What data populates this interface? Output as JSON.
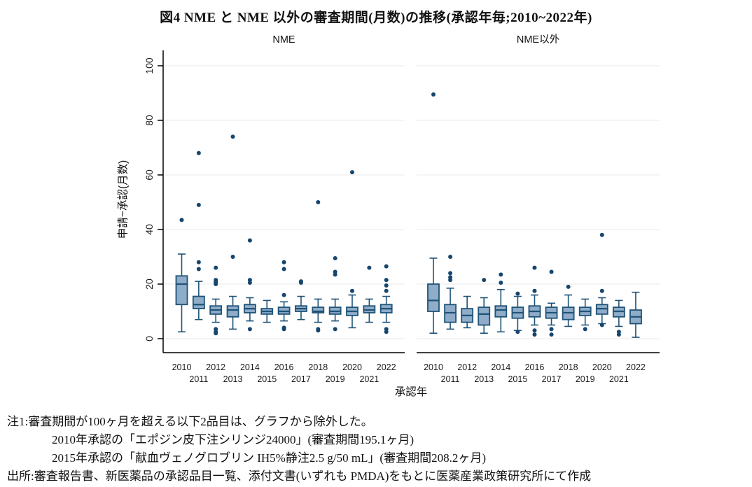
{
  "title": "図4 NME と NME 以外の審査期間(月数)の推移(承認年毎;2010~2022年)",
  "notes": {
    "note1": "注1:審査期間が100ヶ月を超える以下2品目は、グラフから除外した。",
    "note2": "2010年承認の「エポジン皮下注シリンジ24000」(審査期間195.1ヶ月)",
    "note3": "2015年承認の「献血ヴェノグロブリン IH5%静注2.5 g/50 mL」(審査期間208.2ヶ月)",
    "source": "出所:審査報告書、新医薬品の承認品目一覧、添付文書(いずれも PMDA)をもとに医薬産業政策研究所にて作成"
  },
  "chart_data": {
    "type": "boxplot",
    "xlabel": "承認年",
    "ylabel": "申請~承認(月数)",
    "ylim": [
      0,
      100
    ],
    "yticks": [
      0,
      20,
      40,
      60,
      80,
      100
    ],
    "grid": "horizontal",
    "categories": [
      "2010",
      "2011",
      "2012",
      "2013",
      "2014",
      "2015",
      "2016",
      "2017",
      "2018",
      "2019",
      "2020",
      "2021",
      "2022"
    ],
    "colors": {
      "box_fill": "#8facc8",
      "box_stroke": "#1f5378",
      "outlier": "#16466e",
      "gridline": "#e8e8ea"
    },
    "panels": [
      {
        "title": "NME",
        "boxes": [
          {
            "year": "2010",
            "low": 2.5,
            "q1": 12.5,
            "median": 20,
            "q3": 23,
            "high": 31,
            "outliers": [
              43.5
            ]
          },
          {
            "year": "2011",
            "low": 7,
            "q1": 11,
            "median": 12.5,
            "q3": 15.5,
            "high": 21,
            "outliers": [
              25.5,
              28,
              49,
              68
            ]
          },
          {
            "year": "2012",
            "low": 6,
            "q1": 9,
            "median": 10.5,
            "q3": 12,
            "high": 14.5,
            "outliers": [
              2,
              2.5,
              3.5,
              20,
              20.5,
              21,
              21.5,
              26
            ]
          },
          {
            "year": "2013",
            "low": 3.5,
            "q1": 8,
            "median": 10.5,
            "q3": 12,
            "high": 15.5,
            "outliers": [
              30,
              74
            ]
          },
          {
            "year": "2014",
            "low": 6.5,
            "q1": 9.5,
            "median": 11,
            "q3": 12.5,
            "high": 15,
            "outliers": [
              3.5,
              20.5,
              21.5,
              36
            ]
          },
          {
            "year": "2015",
            "low": 6,
            "q1": 9,
            "median": 10,
            "q3": 11,
            "high": 14,
            "outliers": []
          },
          {
            "year": "2016",
            "low": 6.5,
            "q1": 9,
            "median": 10,
            "q3": 11.5,
            "high": 13.5,
            "outliers": [
              3.5,
              4,
              16,
              25.5,
              28
            ]
          },
          {
            "year": "2017",
            "low": 7,
            "q1": 10,
            "median": 11,
            "q3": 12,
            "high": 15.5,
            "outliers": [
              20.5,
              21
            ]
          },
          {
            "year": "2018",
            "low": 6,
            "q1": 9.5,
            "median": 10,
            "q3": 11.5,
            "high": 14.5,
            "outliers": [
              3,
              3.5,
              50
            ]
          },
          {
            "year": "2019",
            "low": 6.5,
            "q1": 9,
            "median": 10,
            "q3": 11.5,
            "high": 14.5,
            "outliers": [
              3.5,
              23.5,
              24.5,
              29.5
            ]
          },
          {
            "year": "2020",
            "low": 4,
            "q1": 8.5,
            "median": 10,
            "q3": 11.5,
            "high": 16,
            "outliers": [
              17.5,
              61
            ]
          },
          {
            "year": "2021",
            "low": 6,
            "q1": 9.5,
            "median": 10.5,
            "q3": 12,
            "high": 14.5,
            "outliers": [
              26
            ]
          },
          {
            "year": "2022",
            "low": 6,
            "q1": 9.5,
            "median": 11,
            "q3": 12.5,
            "high": 15.5,
            "outliers": [
              2.5,
              3.5,
              17.5,
              19.5,
              21.5,
              26.5
            ]
          }
        ]
      },
      {
        "title": "NME以外",
        "boxes": [
          {
            "year": "2010",
            "low": 2,
            "q1": 10,
            "median": 14,
            "q3": 20,
            "high": 29.5,
            "outliers": [
              89.5
            ]
          },
          {
            "year": "2011",
            "low": 3.5,
            "q1": 6,
            "median": 9.5,
            "q3": 12.5,
            "high": 18.5,
            "outliers": [
              21.5,
              22.5,
              24,
              30
            ]
          },
          {
            "year": "2012",
            "low": 4,
            "q1": 6,
            "median": 8.5,
            "q3": 11,
            "high": 15.5,
            "outliers": []
          },
          {
            "year": "2013",
            "low": 2,
            "q1": 5,
            "median": 9,
            "q3": 11.5,
            "high": 15,
            "outliers": [
              21.5
            ]
          },
          {
            "year": "2014",
            "low": 2.5,
            "q1": 8,
            "median": 10.5,
            "q3": 12,
            "high": 18,
            "outliers": [
              20.5,
              23.5
            ]
          },
          {
            "year": "2015",
            "low": 3,
            "q1": 7.5,
            "median": 9.5,
            "q3": 11.5,
            "high": 15.5,
            "outliers": [
              2.5,
              16.5
            ]
          },
          {
            "year": "2016",
            "low": 5,
            "q1": 8,
            "median": 10,
            "q3": 12,
            "high": 16,
            "outliers": [
              1.5,
              3,
              17.5,
              26
            ]
          },
          {
            "year": "2017",
            "low": 5,
            "q1": 7.5,
            "median": 9.5,
            "q3": 11.5,
            "high": 13,
            "outliers": [
              1.5,
              3.5,
              24.5
            ]
          },
          {
            "year": "2018",
            "low": 4.5,
            "q1": 7,
            "median": 9.5,
            "q3": 11.5,
            "high": 16,
            "outliers": [
              19
            ]
          },
          {
            "year": "2019",
            "low": 5,
            "q1": 8.5,
            "median": 10,
            "q3": 11.5,
            "high": 14.5,
            "outliers": [
              3.5
            ]
          },
          {
            "year": "2020",
            "low": 5.5,
            "q1": 9,
            "median": 11,
            "q3": 12.5,
            "high": 15,
            "outliers": [
              5,
              17.5,
              38
            ]
          },
          {
            "year": "2021",
            "low": 4.5,
            "q1": 8,
            "median": 10,
            "q3": 11.5,
            "high": 14,
            "outliers": [
              1.5,
              2.5
            ]
          },
          {
            "year": "2022",
            "low": 0.5,
            "q1": 5.5,
            "median": 8,
            "q3": 10.5,
            "high": 17,
            "outliers": []
          }
        ]
      }
    ]
  }
}
